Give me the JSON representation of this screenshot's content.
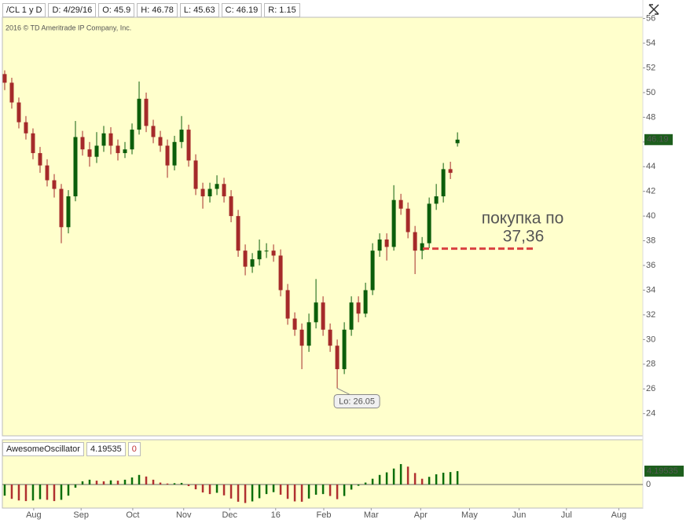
{
  "header": {
    "items": [
      "/CL 1 y D",
      "D: 4/29/16",
      "O: 45.9",
      "H: 46.78",
      "L: 45.63",
      "C: 46.19",
      "R: 1.15"
    ]
  },
  "chart_data": [
    {
      "type": "candlestick",
      "copyright": "2016 © TD Ameritrade IP Company, Inc.",
      "open": [
        51.5,
        50.8,
        49.2,
        47.6,
        46.7,
        45.1,
        44.1,
        42.9,
        42.2,
        39.1,
        41.6,
        46.4,
        45.4,
        44.8,
        45.7,
        46.7,
        45.7,
        45.1,
        45.4,
        47.0,
        49.5,
        47.3,
        46.4,
        45.7,
        44.1,
        46.0,
        47.0,
        44.5,
        42.2,
        41.6,
        42.2,
        42.6,
        41.6,
        40.0,
        37.2,
        35.9,
        36.5,
        37.2,
        37.2,
        36.8,
        34.0,
        31.7,
        30.8,
        29.5,
        31.4,
        33.0,
        30.8,
        29.5,
        27.6,
        30.8,
        33.0,
        32.1,
        34.0,
        37.2,
        38.1,
        37.5,
        41.3,
        40.6,
        38.7,
        37.2,
        37.8,
        41.0,
        41.6,
        43.8,
        45.9
      ],
      "high": [
        51.8,
        51.2,
        49.6,
        48.1,
        47.1,
        45.6,
        44.6,
        43.4,
        42.6,
        42.1,
        47.7,
        46.9,
        46.0,
        46.8,
        47.3,
        47.2,
        46.2,
        46.0,
        47.5,
        50.9,
        50.0,
        47.8,
        46.9,
        46.2,
        46.5,
        48.1,
        47.4,
        45.0,
        42.7,
        42.7,
        43.3,
        43.1,
        42.1,
        40.5,
        37.7,
        37.0,
        38.1,
        37.8,
        37.7,
        37.3,
        34.5,
        32.2,
        31.3,
        32.1,
        34.9,
        33.5,
        31.3,
        30.0,
        31.4,
        33.5,
        33.5,
        34.6,
        37.8,
        38.6,
        38.6,
        42.5,
        41.8,
        41.1,
        39.2,
        38.3,
        41.5,
        42.6,
        44.3,
        44.4,
        46.78
      ],
      "low": [
        50.2,
        48.7,
        47.1,
        46.2,
        44.6,
        43.5,
        42.4,
        41.5,
        37.8,
        38.6,
        41.2,
        44.9,
        44.0,
        44.3,
        45.2,
        45.0,
        44.5,
        44.7,
        45.0,
        46.6,
        46.8,
        45.9,
        45.2,
        43.1,
        43.7,
        45.5,
        44.0,
        41.7,
        40.6,
        41.1,
        41.7,
        41.1,
        39.5,
        36.7,
        35.2,
        35.4,
        36.0,
        36.6,
        36.3,
        33.5,
        31.2,
        30.3,
        27.6,
        29.0,
        30.9,
        30.3,
        29.0,
        26.05,
        27.2,
        30.3,
        31.4,
        31.8,
        33.6,
        36.7,
        36.4,
        37.2,
        40.1,
        38.2,
        35.3,
        36.5,
        37.4,
        40.5,
        41.1,
        43.0,
        45.63
      ],
      "close": [
        50.8,
        49.2,
        47.6,
        46.7,
        45.1,
        44.1,
        42.9,
        42.2,
        39.1,
        41.6,
        46.4,
        45.4,
        44.8,
        45.7,
        46.7,
        45.7,
        45.1,
        45.4,
        47.0,
        49.5,
        47.3,
        46.4,
        45.7,
        44.1,
        46.0,
        47.0,
        44.5,
        42.2,
        41.6,
        42.2,
        42.6,
        41.6,
        40.0,
        37.2,
        35.9,
        36.5,
        37.2,
        37.2,
        36.8,
        34.0,
        31.7,
        30.8,
        29.5,
        31.4,
        33.0,
        30.8,
        29.5,
        27.6,
        30.8,
        33.0,
        32.1,
        34.0,
        37.2,
        38.1,
        37.5,
        41.3,
        40.6,
        38.7,
        37.2,
        37.8,
        41.0,
        41.6,
        43.8,
        43.5,
        46.19
      ],
      "up_color": "#0b5e0b",
      "down_color": "#a52a2a",
      "last_price_color": "#1d5e1d",
      "xlim": [
        -0.33,
        90.2
      ],
      "xticks": [
        {
          "value": 4.1,
          "label": "Aug"
        },
        {
          "value": 10.8,
          "label": "Sep"
        },
        {
          "value": 18.1,
          "label": "Oct"
        },
        {
          "value": 25.3,
          "label": "Nov"
        },
        {
          "value": 31.8,
          "label": "Dec"
        },
        {
          "value": 38.3,
          "label": "16"
        },
        {
          "value": 45.1,
          "label": "Feb"
        },
        {
          "value": 51.8,
          "label": "Mar"
        },
        {
          "value": 58.8,
          "label": "Apr"
        },
        {
          "value": 65.7,
          "label": "May"
        },
        {
          "value": 72.7,
          "label": "Jun"
        },
        {
          "value": 79.4,
          "label": "Jul"
        },
        {
          "value": 86.8,
          "label": "Aug"
        }
      ],
      "ylim": [
        22.2,
        56.1
      ],
      "yticks": [
        24,
        26,
        28,
        30,
        32,
        34,
        36,
        38,
        40,
        42,
        44,
        46,
        48,
        50,
        52,
        54,
        56
      ],
      "low_label": "Lo: 26.05",
      "buy_level": 37.36,
      "buy_color": "#d94040",
      "buy_text": [
        "покупка по",
        "37,36"
      ]
    },
    {
      "type": "bar",
      "legend": [
        "AwesomeOscillator",
        "4.19535",
        "0"
      ],
      "values": [
        -3.5,
        -4.5,
        -5.0,
        -5.2,
        -5.0,
        -4.6,
        -4.8,
        -5.2,
        -4.8,
        -3.5,
        -1.0,
        1.0,
        1.5,
        1.2,
        1.0,
        1.3,
        1.2,
        1.5,
        2.2,
        3.0,
        2.5,
        1.5,
        0.6,
        0.3,
        0.4,
        0.5,
        -0.5,
        -1.5,
        -2.5,
        -3.0,
        -2.6,
        -3.4,
        -4.4,
        -5.4,
        -5.8,
        -5.3,
        -4.3,
        -3.0,
        -2.4,
        -3.2,
        -4.5,
        -5.3,
        -5.4,
        -4.4,
        -3.2,
        -3.0,
        -3.6,
        -4.6,
        -3.6,
        -1.6,
        -0.4,
        0.6,
        1.8,
        3.0,
        3.8,
        5.0,
        6.4,
        5.6,
        3.6,
        1.8,
        2.4,
        3.2,
        3.7,
        3.9,
        4.19535
      ],
      "up_color": "#0b6e0b",
      "down_color": "#b03030",
      "last_value_color": "#1d5e1d",
      "ylim": [
        -6.9,
        9.1
      ],
      "yticks": [
        0
      ]
    }
  ]
}
